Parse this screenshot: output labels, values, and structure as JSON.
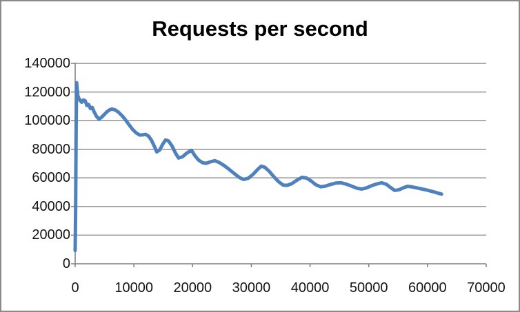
{
  "chart_data": {
    "type": "line",
    "title": "Requests per second",
    "xlabel": "",
    "ylabel": "",
    "legend": "none",
    "grid": "horizontal",
    "x_axis": {
      "min": 0,
      "max": 70000,
      "ticks": [
        0,
        10000,
        20000,
        30000,
        40000,
        50000,
        60000,
        70000
      ]
    },
    "y_axis": {
      "min": 0,
      "max": 140000,
      "ticks": [
        0,
        20000,
        40000,
        60000,
        80000,
        100000,
        120000,
        140000
      ]
    },
    "series": [
      {
        "name": "Requests per second",
        "color": "#4f81bd",
        "points": [
          [
            0,
            9300
          ],
          [
            80,
            40000
          ],
          [
            160,
            95000
          ],
          [
            250,
            126500
          ],
          [
            350,
            121500
          ],
          [
            450,
            117500
          ],
          [
            600,
            115800
          ],
          [
            900,
            113800
          ],
          [
            1100,
            112800
          ],
          [
            1400,
            114400
          ],
          [
            1700,
            113900
          ],
          [
            2000,
            110600
          ],
          [
            2300,
            111300
          ],
          [
            2600,
            108400
          ],
          [
            2900,
            109200
          ],
          [
            3200,
            106400
          ],
          [
            3600,
            103200
          ],
          [
            4000,
            101200
          ],
          [
            4400,
            102000
          ],
          [
            4900,
            104000
          ],
          [
            5400,
            106200
          ],
          [
            5900,
            107600
          ],
          [
            6300,
            108100
          ],
          [
            6800,
            107500
          ],
          [
            7400,
            105800
          ],
          [
            8000,
            103400
          ],
          [
            8600,
            100400
          ],
          [
            9200,
            97000
          ],
          [
            9800,
            93800
          ],
          [
            10400,
            91400
          ],
          [
            11000,
            89900
          ],
          [
            11600,
            90100
          ],
          [
            12000,
            90400
          ],
          [
            12500,
            89200
          ],
          [
            13000,
            86200
          ],
          [
            13500,
            82000
          ],
          [
            13900,
            78200
          ],
          [
            14400,
            79500
          ],
          [
            14900,
            83500
          ],
          [
            15400,
            86500
          ],
          [
            15900,
            85800
          ],
          [
            16500,
            82200
          ],
          [
            17100,
            77200
          ],
          [
            17600,
            73900
          ],
          [
            18300,
            74800
          ],
          [
            19000,
            77300
          ],
          [
            19800,
            79300
          ],
          [
            20400,
            75500
          ],
          [
            21000,
            72500
          ],
          [
            21700,
            70600
          ],
          [
            22300,
            70200
          ],
          [
            23000,
            71200
          ],
          [
            23800,
            72000
          ],
          [
            24500,
            70800
          ],
          [
            25300,
            68800
          ],
          [
            26200,
            66000
          ],
          [
            27100,
            63000
          ],
          [
            28000,
            60200
          ],
          [
            28700,
            58900
          ],
          [
            29500,
            59800
          ],
          [
            30300,
            62500
          ],
          [
            31100,
            66000
          ],
          [
            31700,
            68200
          ],
          [
            32300,
            67400
          ],
          [
            33000,
            64800
          ],
          [
            33800,
            61000
          ],
          [
            34600,
            57500
          ],
          [
            35400,
            55000
          ],
          [
            36100,
            54800
          ],
          [
            36900,
            56000
          ],
          [
            37800,
            58500
          ],
          [
            38600,
            60400
          ],
          [
            39400,
            59900
          ],
          [
            40200,
            57800
          ],
          [
            41000,
            55200
          ],
          [
            41800,
            53800
          ],
          [
            42600,
            54200
          ],
          [
            43500,
            55400
          ],
          [
            44400,
            56400
          ],
          [
            45300,
            56600
          ],
          [
            46200,
            55600
          ],
          [
            47100,
            54200
          ],
          [
            48000,
            52800
          ],
          [
            48800,
            52200
          ],
          [
            49600,
            53000
          ],
          [
            50400,
            54400
          ],
          [
            51300,
            55700
          ],
          [
            52200,
            56600
          ],
          [
            53000,
            55500
          ],
          [
            53700,
            53300
          ],
          [
            54400,
            51300
          ],
          [
            55100,
            51600
          ],
          [
            55800,
            52900
          ],
          [
            56600,
            54100
          ],
          [
            57400,
            53700
          ],
          [
            58200,
            53000
          ],
          [
            59100,
            52200
          ],
          [
            60000,
            51400
          ],
          [
            61000,
            50300
          ],
          [
            62000,
            49100
          ],
          [
            62400,
            48700
          ]
        ]
      }
    ]
  },
  "colors": {
    "line": "#4f81bd",
    "gridline": "#919191",
    "axis": "#7f7f7f",
    "tick": "#7f7f7f",
    "frame_border": "#8a8a8a",
    "background": "#ffffff",
    "title_text": "#000000",
    "tick_label_text": "#141414"
  }
}
